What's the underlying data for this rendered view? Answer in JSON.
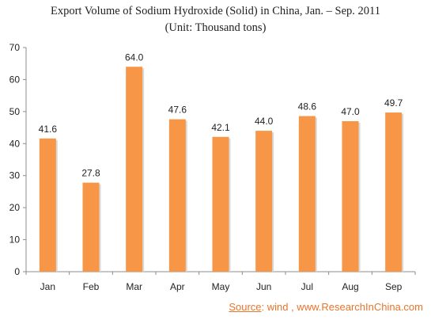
{
  "chart_data": {
    "type": "bar",
    "title": "Export Volume of Sodium Hydroxide (Solid) in China, Jan. – Sep. 2011",
    "subtitle": "(Unit: Thousand tons)",
    "categories": [
      "Jan",
      "Feb",
      "Mar",
      "Apr",
      "May",
      "Jun",
      "Jul",
      "Aug",
      "Sep"
    ],
    "values": [
      41.6,
      27.8,
      64.0,
      47.6,
      42.1,
      44.0,
      48.6,
      47.0,
      49.7
    ],
    "value_labels": [
      "41.6",
      "27.8",
      "64.0",
      "47.6",
      "42.1",
      "44.0",
      "48.6",
      "47.0",
      "49.7"
    ],
    "yticks": [
      "0",
      "10",
      "20",
      "30",
      "40",
      "50",
      "60",
      "70"
    ],
    "ylim": [
      0,
      70
    ],
    "xlabel": "",
    "ylabel": "",
    "grid": false,
    "legend": "none",
    "bar_color": "#f79646"
  },
  "source": {
    "label": "Source",
    "text": ":  wind , www.ResearchInChina.com"
  }
}
